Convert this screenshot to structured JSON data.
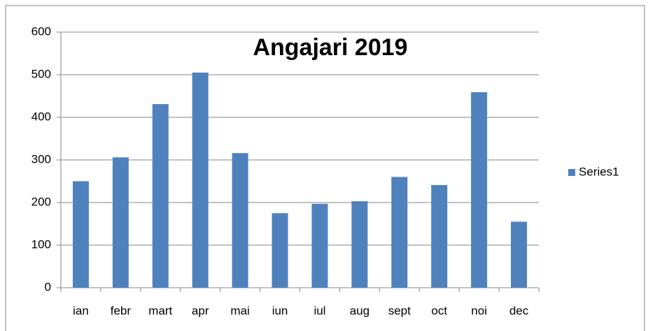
{
  "chart_data": {
    "type": "bar",
    "title": "Angajari 2019",
    "categories": [
      "ian",
      "febr",
      "mart",
      "apr",
      "mai",
      "iun",
      "iul",
      "aug",
      "sept",
      "oct",
      "noi",
      "dec"
    ],
    "series": [
      {
        "name": "Series1",
        "color": "#4f81bd",
        "values": [
          250,
          306,
          431,
          505,
          316,
          175,
          197,
          203,
          260,
          241,
          459,
          155
        ]
      }
    ],
    "ylim": [
      0,
      600
    ],
    "yticks": [
      0,
      100,
      200,
      300,
      400,
      500,
      600
    ],
    "grid": true,
    "legend": "right"
  }
}
